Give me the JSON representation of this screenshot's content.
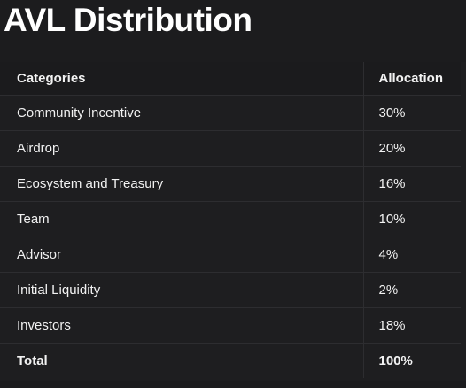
{
  "title": "AVL Distribution",
  "table": {
    "headers": [
      "Categories",
      "Allocation"
    ],
    "rows": [
      [
        "Community Incentive",
        "30%"
      ],
      [
        "Airdrop",
        "20%"
      ],
      [
        "Ecosystem and Treasury",
        "16%"
      ],
      [
        "Team",
        "10%"
      ],
      [
        "Advisor",
        "4%"
      ],
      [
        "Initial Liquidity",
        "2%"
      ],
      [
        "Investors",
        "18%"
      ]
    ],
    "total": [
      "Total",
      "100%"
    ]
  },
  "colors": {
    "background": "#1c1c1e",
    "text": "#ffffff",
    "divider": "#2d2d30"
  }
}
